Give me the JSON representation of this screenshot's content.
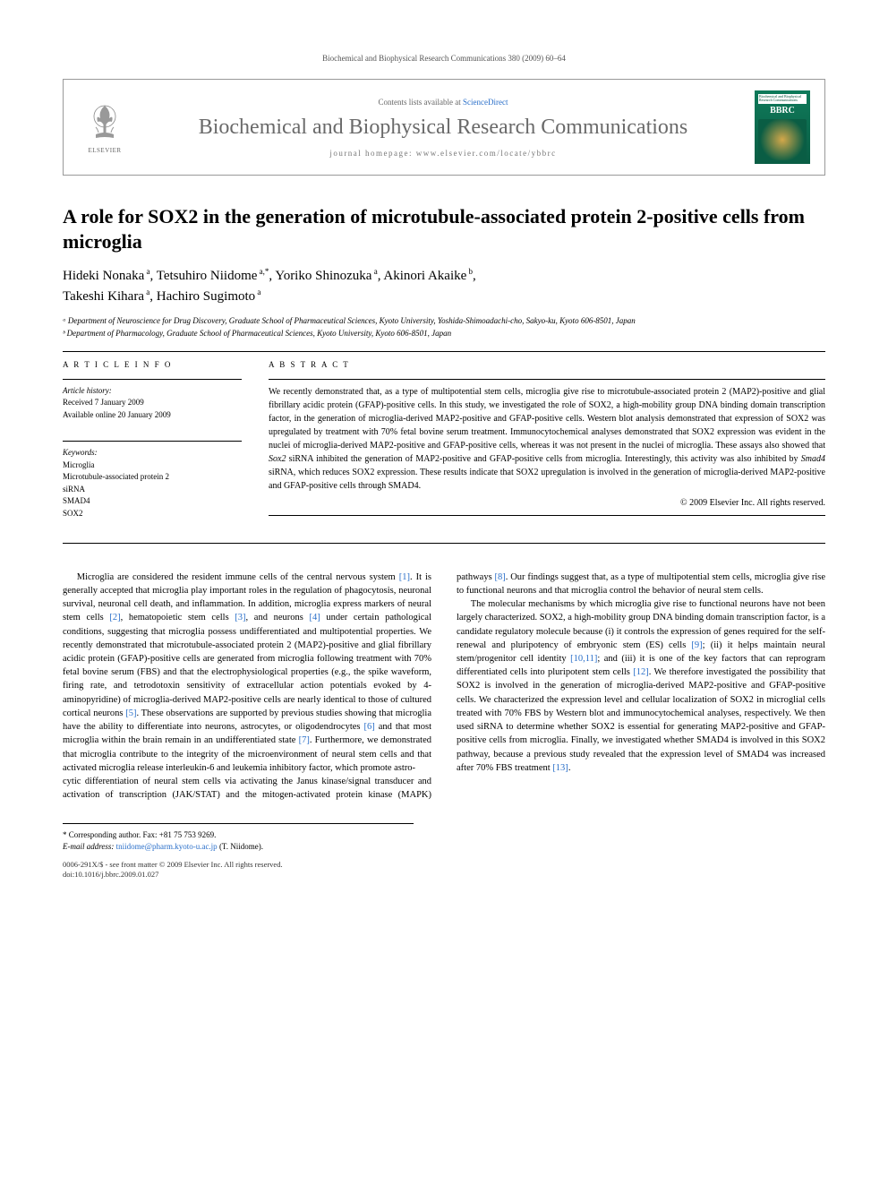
{
  "running_head": "Biochemical and Biophysical Research Communications 380 (2009) 60–64",
  "header": {
    "publisher_name": "ELSEVIER",
    "contents_prefix": "Contents lists available at ",
    "contents_link": "ScienceDirect",
    "journal_title": "Biochemical and Biophysical Research Communications",
    "homepage_prefix": "journal homepage: ",
    "homepage_url": "www.elsevier.com/locate/ybbrc",
    "cover_text_top": "Biochemical and Biophysical Research Communications",
    "cover_bbrc": "BBRC"
  },
  "article": {
    "title": "A role for SOX2 in the generation of microtubule-associated protein 2-positive cells from microglia",
    "authors_html": "Hideki Nonaka ᵃ, Tetsuhiro Niidome ᵃ·*, Yoriko Shinozuka ᵃ, Akinori Akaike ᵇ, Takeshi Kihara ᵃ, Hachiro Sugimoto ᵃ",
    "affiliations": {
      "a": "ᵃ Department of Neuroscience for Drug Discovery, Graduate School of Pharmaceutical Sciences, Kyoto University, Yoshida-Shimoadachi-cho, Sakyo-ku, Kyoto 606-8501, Japan",
      "b": "ᵇ Department of Pharmacology, Graduate School of Pharmaceutical Sciences, Kyoto University, Kyoto 606-8501, Japan"
    }
  },
  "info": {
    "heading": "A R T I C L E   I N F O",
    "history_label": "Article history:",
    "received": "Received 7 January 2009",
    "online": "Available online 20 January 2009",
    "keywords_label": "Keywords:",
    "keywords": [
      "Microglia",
      "Microtubule-associated protein 2",
      "siRNA",
      "SMAD4",
      "SOX2"
    ]
  },
  "abstract": {
    "heading": "A B S T R A C T",
    "text": "We recently demonstrated that, as a type of multipotential stem cells, microglia give rise to microtubule-associated protein 2 (MAP2)-positive and glial fibrillary acidic protein (GFAP)-positive cells. In this study, we investigated the role of SOX2, a high-mobility group DNA binding domain transcription factor, in the generation of microglia-derived MAP2-positive and GFAP-positive cells. Western blot analysis demonstrated that expression of SOX2 was upregulated by treatment with 70% fetal bovine serum treatment. Immunocytochemical analyses demonstrated that SOX2 expression was evident in the nuclei of microglia-derived MAP2-positive and GFAP-positive cells, whereas it was not present in the nuclei of microglia. These assays also showed that Sox2 siRNA inhibited the generation of MAP2-positive and GFAP-positive cells from microglia. Interestingly, this activity was also inhibited by Smad4 siRNA, which reduces SOX2 expression. These results indicate that SOX2 upregulation is involved in the generation of microglia-derived MAP2-positive and GFAP-positive cells through SMAD4.",
    "copyright": "© 2009 Elsevier Inc. All rights reserved."
  },
  "body": {
    "p1": "Microglia are considered the resident immune cells of the central nervous system [1]. It is generally accepted that microglia play important roles in the regulation of phagocytosis, neuronal survival, neuronal cell death, and inflammation. In addition, microglia express markers of neural stem cells [2], hematopoietic stem cells [3], and neurons [4] under certain pathological conditions, suggesting that microglia possess undifferentiated and multipotential properties. We recently demonstrated that microtubule-associated protein 2 (MAP2)-positive and glial fibrillary acidic protein (GFAP)-positive cells are generated from microglia following treatment with 70% fetal bovine serum (FBS) and that the electrophysiological properties (e.g., the spike waveform, firing rate, and tetrodotoxin sensitivity of extracellular action potentials evoked by 4-aminopyridine) of microglia-derived MAP2-positive cells are nearly identical to those of cultured cortical neurons [5]. These observations are supported by previous studies showing that microglia have the ability to differentiate into neurons, astrocytes, or oligodendrocytes [6] and that most microglia within the brain remain in an undifferentiated state [7]. Furthermore, we demonstrated that microglia contribute to the integrity of the microenvironment of neural stem cells and that activated microglia release interleukin-6 and leukemia inhibitory factor, which promote astro-",
    "p2": "cytic differentiation of neural stem cells via activating the Janus kinase/signal transducer and activation of transcription (JAK/STAT) and the mitogen-activated protein kinase (MAPK) pathways [8]. Our findings suggest that, as a type of multipotential stem cells, microglia give rise to functional neurons and that microglia control the behavior of neural stem cells.",
    "p3": "The molecular mechanisms by which microglia give rise to functional neurons have not been largely characterized. SOX2, a high-mobility group DNA binding domain transcription factor, is a candidate regulatory molecule because (i) it controls the expression of genes required for the self-renewal and pluripotency of embryonic stem (ES) cells [9]; (ii) it helps maintain neural stem/progenitor cell identity [10,11]; and (iii) it is one of the key factors that can reprogram differentiated cells into pluripotent stem cells [12]. We therefore investigated the possibility that SOX2 is involved in the generation of microglia-derived MAP2-positive and GFAP-positive cells. We characterized the expression level and cellular localization of SOX2 in microglial cells treated with 70% FBS by Western blot and immunocytochemical analyses, respectively. We then used siRNA to determine whether SOX2 is essential for generating MAP2-positive and GFAP-positive cells from microglia. Finally, we investigated whether SMAD4 is involved in this SOX2 pathway, because a previous study revealed that the expression level of SMAD4 was increased after 70% FBS treatment [13]."
  },
  "corr": {
    "line1": "* Corresponding author. Fax: +81 75 753 9269.",
    "line2_label": "E-mail address:",
    "line2_email": "tniidome@pharm.kyoto-u.ac.jp",
    "line2_name": "(T. Niidome)."
  },
  "footer": {
    "line1": "0006-291X/$ - see front matter © 2009 Elsevier Inc. All rights reserved.",
    "line2": "doi:10.1016/j.bbrc.2009.01.027"
  },
  "colors": {
    "link": "#2a6fc9",
    "text": "#000000",
    "gray": "#6a6a6a",
    "cover_bg": "#0f7a5a"
  }
}
